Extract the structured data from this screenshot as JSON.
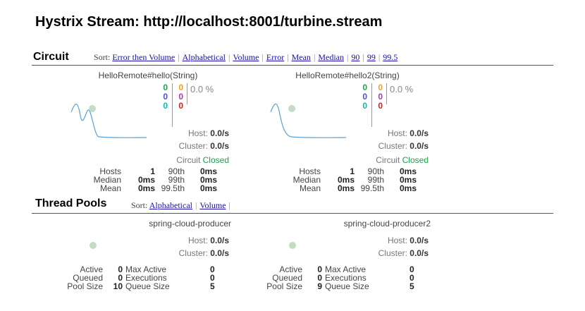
{
  "page": {
    "title": "Hystrix Stream: http://localhost:8001/turbine.stream"
  },
  "circuit": {
    "title": "Circuit",
    "sort_prefix": "Sort:",
    "sort_links": [
      "Error then Volume",
      "Alphabetical",
      "Volume",
      "Error",
      "Mean",
      "Median",
      "90",
      "99",
      "99.5"
    ],
    "cards": [
      {
        "name": "HelloRemote#hello(String)",
        "counts_col1": [
          "0",
          "0",
          "0"
        ],
        "counts_col2": [
          "0",
          "0",
          "0"
        ],
        "error_pct": "0.0 %",
        "host_label": "Host:",
        "host_value": "0.0/s",
        "cluster_label": "Cluster:",
        "cluster_value": "0.0/s",
        "circuit_label": "Circuit",
        "circuit_status": "Closed",
        "stats": {
          "hosts_label": "Hosts",
          "hosts_value": "1",
          "p90_label": "90th",
          "p90_value": "0ms",
          "median_label": "Median",
          "median_value": "0ms",
          "p99_label": "99th",
          "p99_value": "0ms",
          "mean_label": "Mean",
          "mean_value": "0ms",
          "p995_label": "99.5th",
          "p995_value": "0ms"
        }
      },
      {
        "name": "HelloRemote#hello2(String)",
        "counts_col1": [
          "0",
          "0",
          "0"
        ],
        "counts_col2": [
          "0",
          "0",
          "0"
        ],
        "error_pct": "0.0 %",
        "host_label": "Host:",
        "host_value": "0.0/s",
        "cluster_label": "Cluster:",
        "cluster_value": "0.0/s",
        "circuit_label": "Circuit",
        "circuit_status": "Closed",
        "stats": {
          "hosts_label": "Hosts",
          "hosts_value": "1",
          "p90_label": "90th",
          "p90_value": "0ms",
          "median_label": "Median",
          "median_value": "0ms",
          "p99_label": "99th",
          "p99_value": "0ms",
          "mean_label": "Mean",
          "mean_value": "0ms",
          "p995_label": "99.5th",
          "p995_value": "0ms"
        }
      }
    ]
  },
  "thread_pools": {
    "title": "Thread Pools",
    "sort_prefix": "Sort:",
    "sort_links": [
      "Alphabetical",
      "Volume"
    ],
    "cards": [
      {
        "name": "spring-cloud-producer",
        "host_label": "Host:",
        "host_value": "0.0/s",
        "cluster_label": "Cluster:",
        "cluster_value": "0.0/s",
        "stats": {
          "active_label": "Active",
          "active_value": "0",
          "max_active_label": "Max Active",
          "max_active_value": "0",
          "queued_label": "Queued",
          "queued_value": "0",
          "executions_label": "Executions",
          "executions_value": "0",
          "pool_size_label": "Pool Size",
          "pool_size_value": "10",
          "queue_size_label": "Queue Size",
          "queue_size_value": "5"
        }
      },
      {
        "name": "spring-cloud-producer2",
        "host_label": "Host:",
        "host_value": "0.0/s",
        "cluster_label": "Cluster:",
        "cluster_value": "0.0/s",
        "stats": {
          "active_label": "Active",
          "active_value": "0",
          "max_active_label": "Max Active",
          "max_active_value": "0",
          "queued_label": "Queued",
          "queued_value": "0",
          "executions_label": "Executions",
          "executions_value": "0",
          "pool_size_label": "Pool Size",
          "pool_size_value": "9",
          "queue_size_label": "Queue Size",
          "queue_size_value": "5"
        }
      }
    ]
  },
  "colors": {
    "success": "#1aa34a",
    "link": "#1a0dab",
    "sparkline": "#5aa0d0",
    "indicator": "#c4dcc4"
  }
}
